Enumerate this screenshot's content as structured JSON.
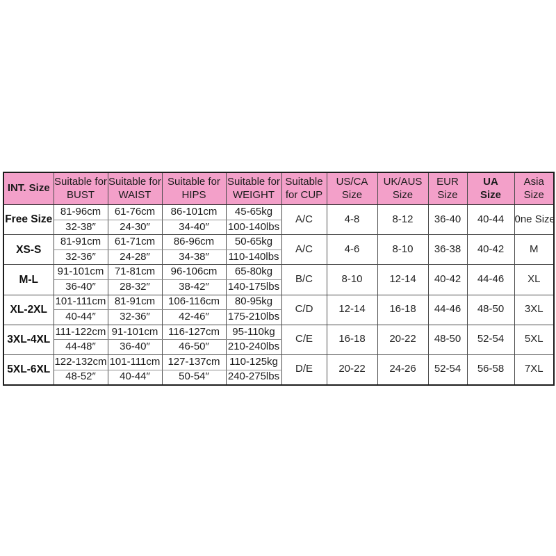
{
  "colors": {
    "header_pink": "#f3a0c9",
    "grid_line": "#4a4a4a",
    "outer_border": "#1c1c1c",
    "text": "#1c1c1c"
  },
  "table": {
    "columns": [
      {
        "key": "int_size",
        "line1": "INT. Size",
        "line2": "",
        "bold": true
      },
      {
        "key": "bust",
        "line1": "Suitable for",
        "line2": "BUST",
        "bold": false
      },
      {
        "key": "waist",
        "line1": "Suitable for",
        "line2": "WAIST",
        "bold": false
      },
      {
        "key": "hips",
        "line1": "Suitable for",
        "line2": "HIPS",
        "bold": false
      },
      {
        "key": "weight",
        "line1": "Suitable for",
        "line2": "WEIGHT",
        "bold": false
      },
      {
        "key": "cup",
        "line1": "Suitable",
        "line2": "for CUP",
        "bold": false
      },
      {
        "key": "us_ca",
        "line1": "US/CA",
        "line2": "Size",
        "bold": false
      },
      {
        "key": "uk_aus",
        "line1": "UK/AUS",
        "line2": "Size",
        "bold": false
      },
      {
        "key": "eur",
        "line1": "EUR",
        "line2": "Size",
        "bold": false
      },
      {
        "key": "ua",
        "line1": "UA",
        "line2": "Size",
        "bold": true
      },
      {
        "key": "asia",
        "line1": "Asia",
        "line2": "Size",
        "bold": false
      }
    ],
    "rows": [
      {
        "size": "Free Size",
        "bust": [
          "81-96cm",
          "32-38″"
        ],
        "waist": [
          "61-76cm",
          "24-30″"
        ],
        "hips": [
          "86-101cm",
          "34-40″"
        ],
        "weight": [
          "45-65kg",
          "100-140lbs"
        ],
        "cup": "A/C",
        "us_ca": "4-8",
        "uk_aus": "8-12",
        "eur": "36-40",
        "ua": "40-44",
        "asia": "0ne Size"
      },
      {
        "size": "XS-S",
        "bust": [
          "81-91cm",
          "32-36″"
        ],
        "waist": [
          "61-71cm",
          "24-28″"
        ],
        "hips": [
          "86-96cm",
          "34-38″"
        ],
        "weight": [
          "50-65kg",
          "110-140lbs"
        ],
        "cup": "A/C",
        "us_ca": "4-6",
        "uk_aus": "8-10",
        "eur": "36-38",
        "ua": "40-42",
        "asia": "M"
      },
      {
        "size": "M-L",
        "bust": [
          "91-101cm",
          "36-40″"
        ],
        "waist": [
          "71-81cm",
          "28-32″"
        ],
        "hips": [
          "96-106cm",
          "38-42″"
        ],
        "weight": [
          "65-80kg",
          "140-175lbs"
        ],
        "cup": "B/C",
        "us_ca": "8-10",
        "uk_aus": "12-14",
        "eur": "40-42",
        "ua": "44-46",
        "asia": "XL"
      },
      {
        "size": "XL-2XL",
        "bust": [
          "101-111cm",
          "40-44″"
        ],
        "waist": [
          "81-91cm",
          "32-36″"
        ],
        "hips": [
          "106-116cm",
          "42-46″"
        ],
        "weight": [
          "80-95kg",
          "175-210lbs"
        ],
        "cup": "C/D",
        "us_ca": "12-14",
        "uk_aus": "16-18",
        "eur": "44-46",
        "ua": "48-50",
        "asia": "3XL"
      },
      {
        "size": "3XL-4XL",
        "bust": [
          "111-122cm",
          "44-48″"
        ],
        "waist": [
          "91-101cm",
          "36-40″"
        ],
        "hips": [
          "116-127cm",
          "46-50″"
        ],
        "weight": [
          "95-110kg",
          "210-240lbs"
        ],
        "cup": "C/E",
        "us_ca": "16-18",
        "uk_aus": "20-22",
        "eur": "48-50",
        "ua": "52-54",
        "asia": "5XL"
      },
      {
        "size": "5XL-6XL",
        "bust": [
          "122-132cm",
          "48-52″"
        ],
        "waist": [
          "101-111cm",
          "40-44″"
        ],
        "hips": [
          "127-137cm",
          "50-54″"
        ],
        "weight": [
          "110-125kg",
          "240-275lbs"
        ],
        "cup": "D/E",
        "us_ca": "20-22",
        "uk_aus": "24-26",
        "eur": "52-54",
        "ua": "56-58",
        "asia": "7XL"
      }
    ]
  }
}
